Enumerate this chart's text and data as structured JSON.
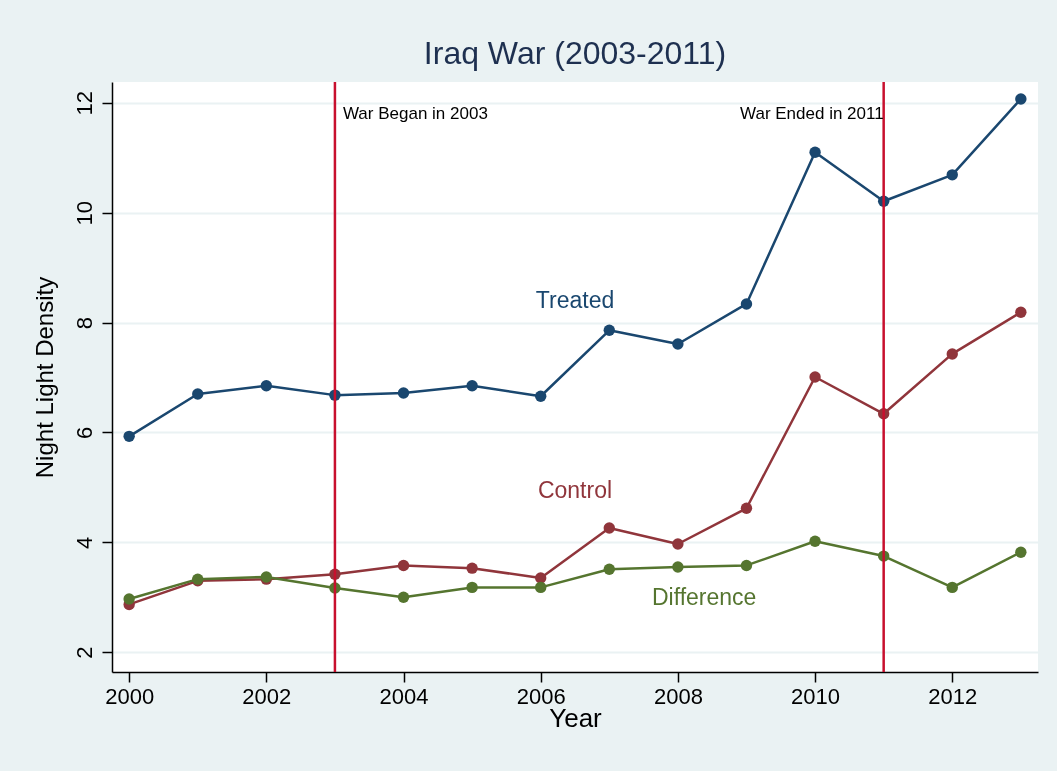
{
  "chart_data": {
    "type": "line",
    "title": "Iraq War (2003-2011)",
    "xlabel": "Year",
    "ylabel": "Night Light Density",
    "x": [
      2000,
      2001,
      2002,
      2003,
      2004,
      2005,
      2006,
      2007,
      2008,
      2009,
      2010,
      2011,
      2012,
      2013
    ],
    "series": [
      {
        "name": "Treated",
        "color": "#1a476f",
        "values": [
          5.93,
          6.7,
          6.85,
          6.68,
          6.72,
          6.85,
          6.66,
          7.86,
          7.61,
          8.34,
          11.1,
          10.21,
          10.69,
          12.07
        ]
      },
      {
        "name": "Control",
        "color": "#90353b",
        "values": [
          2.87,
          3.3,
          3.33,
          3.42,
          3.58,
          3.53,
          3.35,
          4.26,
          3.97,
          4.62,
          7.01,
          6.34,
          7.43,
          8.19
        ]
      },
      {
        "name": "Difference",
        "color": "#55752f",
        "values": [
          2.97,
          3.33,
          3.37,
          3.17,
          3.0,
          3.18,
          3.18,
          3.51,
          3.55,
          3.58,
          4.02,
          3.75,
          3.18,
          3.82
        ]
      }
    ],
    "xlim": [
      1999.75,
      2013.25
    ],
    "ylim": [
      1.64,
      12.38
    ],
    "xticks": [
      2000,
      2002,
      2004,
      2006,
      2008,
      2010,
      2012
    ],
    "yticks": [
      2,
      4,
      6,
      8,
      10,
      12
    ],
    "ref_lines": [
      {
        "axis": "x",
        "value": 2003,
        "label": "War Began in 2003",
        "color": "#c8102e"
      },
      {
        "axis": "x",
        "value": 2011,
        "label": "War Ended in 2011",
        "color": "#c8102e"
      }
    ],
    "grid": "y",
    "marker": "circle",
    "line_style": "solid"
  }
}
